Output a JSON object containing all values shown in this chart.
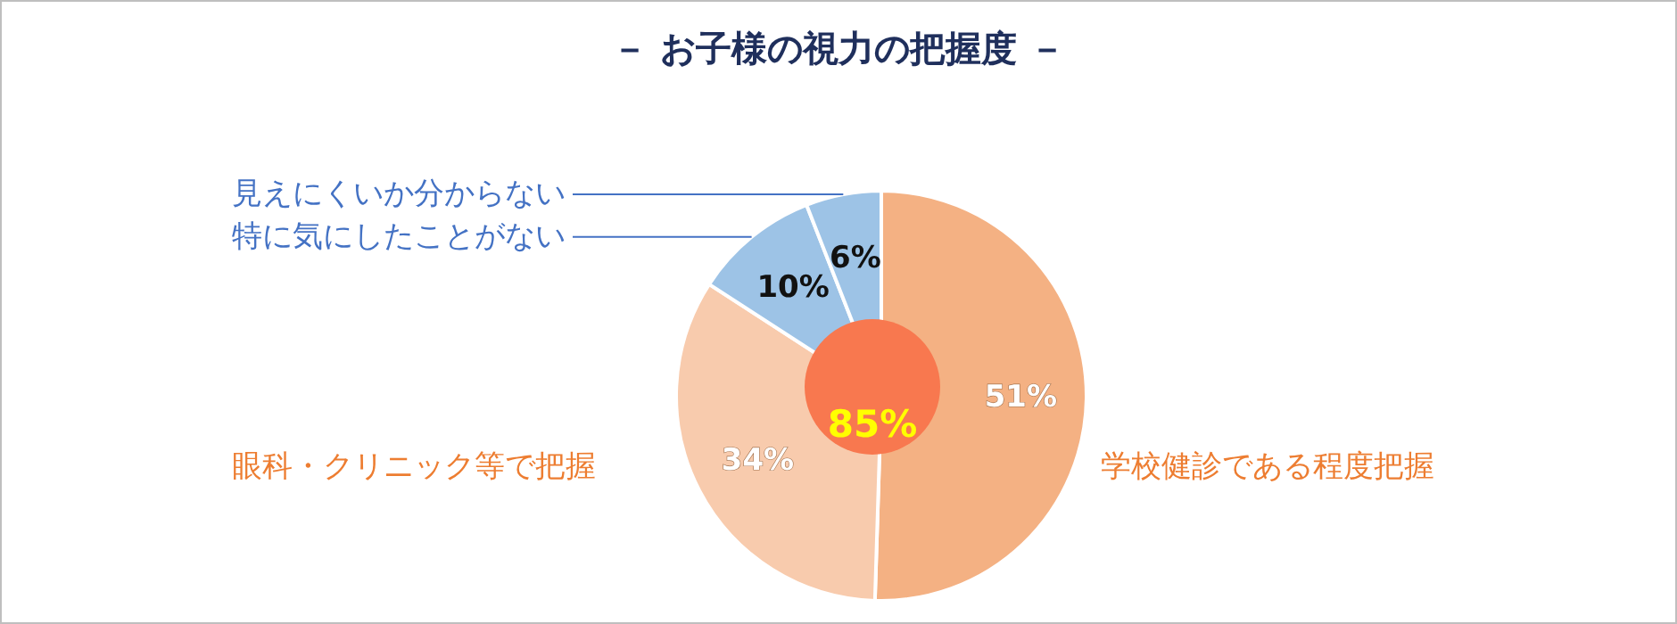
{
  "chart_data": {
    "type": "pie",
    "title": "－ お子様の視力の把握度 －",
    "categories": [
      "学校健診である程度把握",
      "眼科・クリニック等で把握",
      "特に気にしたことがない",
      "見えにくいか分からない"
    ],
    "values": [
      51,
      34,
      10,
      6
    ],
    "colors": [
      "#f4b183",
      "#f8cbad",
      "#9dc3e6",
      "#9dc3e6"
    ],
    "value_labels": [
      "51%",
      "34%",
      "10%",
      "6%"
    ],
    "annotations": [
      "85%"
    ]
  }
}
